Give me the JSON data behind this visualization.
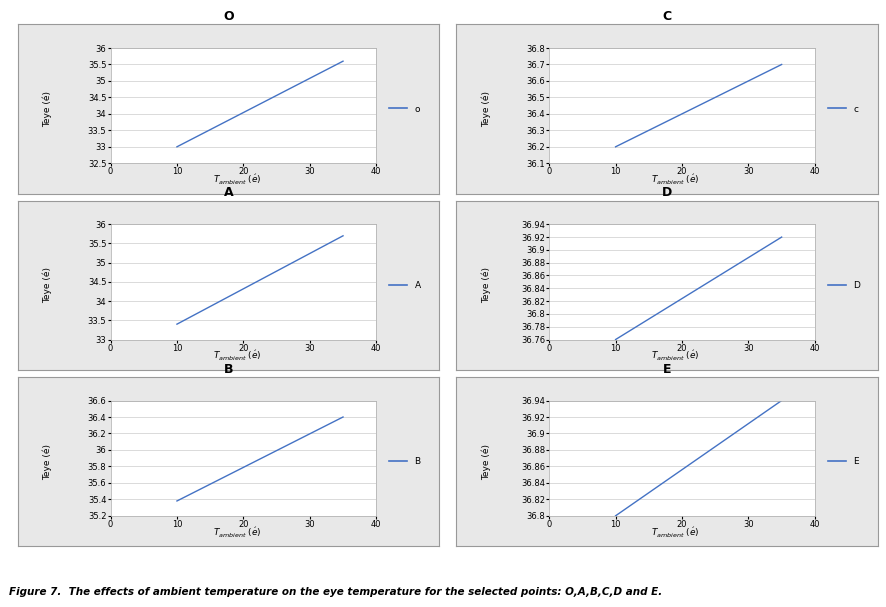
{
  "subplots": [
    {
      "title": "O",
      "label": "o",
      "x": [
        10,
        35
      ],
      "y": [
        33.0,
        35.6
      ],
      "ylim": [
        32.5,
        36
      ],
      "yticks": [
        32.5,
        33,
        33.5,
        34,
        34.5,
        35,
        35.5,
        36
      ],
      "ytick_labels": [
        "32.5",
        "33",
        "33.5",
        "34",
        "34.5",
        "35",
        "35.5",
        "36"
      ],
      "xlim": [
        0,
        40
      ],
      "xticks": [
        0,
        10,
        20,
        30,
        40
      ]
    },
    {
      "title": "C",
      "label": "c",
      "x": [
        10,
        35
      ],
      "y": [
        36.2,
        36.7
      ],
      "ylim": [
        36.1,
        36.8
      ],
      "yticks": [
        36.1,
        36.2,
        36.3,
        36.4,
        36.5,
        36.6,
        36.7,
        36.8
      ],
      "ytick_labels": [
        "36.1",
        "36.2",
        "36.3",
        "36.4",
        "36.5",
        "36.6",
        "36.7",
        "36.8"
      ],
      "xlim": [
        0,
        40
      ],
      "xticks": [
        0,
        10,
        20,
        30,
        40
      ]
    },
    {
      "title": "A",
      "label": "A",
      "x": [
        10,
        35
      ],
      "y": [
        33.4,
        35.7
      ],
      "ylim": [
        33,
        36
      ],
      "yticks": [
        33,
        33.5,
        34,
        34.5,
        35,
        35.5,
        36
      ],
      "ytick_labels": [
        "33",
        "33.5",
        "34",
        "34.5",
        "35",
        "35.5",
        "36"
      ],
      "xlim": [
        0,
        40
      ],
      "xticks": [
        0,
        10,
        20,
        30,
        40
      ]
    },
    {
      "title": "D",
      "label": "D",
      "x": [
        10,
        35
      ],
      "y": [
        36.76,
        36.92
      ],
      "ylim": [
        36.75,
        36.94
      ],
      "yticks": [
        36.76,
        36.78,
        36.8,
        36.82,
        36.84,
        36.86,
        36.88,
        36.9,
        36.92,
        36.94
      ],
      "ytick_labels": [
        "36.76",
        "36.78",
        "36.8",
        "36.82",
        "36.84",
        "36.86",
        "36.88",
        "36.9",
        "36.92",
        "36.94"
      ],
      "xlim": [
        0,
        40
      ],
      "xticks": [
        0,
        10,
        20,
        30,
        40
      ]
    },
    {
      "title": "B",
      "label": "B",
      "x": [
        10,
        35
      ],
      "y": [
        35.38,
        36.4
      ],
      "ylim": [
        35.2,
        36.6
      ],
      "yticks": [
        35.2,
        35.4,
        35.6,
        35.8,
        36,
        36.2,
        36.4,
        36.6
      ],
      "ytick_labels": [
        "35.2",
        "35.4",
        "35.6",
        "35.8",
        "36",
        "36.2",
        "36.4",
        "36.6"
      ],
      "xlim": [
        0,
        40
      ],
      "xticks": [
        0,
        10,
        20,
        30,
        40
      ]
    },
    {
      "title": "E",
      "label": "E",
      "x": [
        10,
        35
      ],
      "y": [
        36.8,
        36.94
      ],
      "ylim": [
        36.79,
        36.95
      ],
      "yticks": [
        36.8,
        36.82,
        36.84,
        36.86,
        36.88,
        36.9,
        36.92,
        36.94
      ],
      "ytick_labels": [
        "36.8",
        "36.82",
        "36.84",
        "36.86",
        "36.88",
        "36.9",
        "36.92",
        "36.94"
      ],
      "xlim": [
        0,
        40
      ],
      "xticks": [
        0,
        10,
        20,
        30,
        40
      ]
    }
  ],
  "line_color": "#4472C4",
  "ylabel": "Teye (é)",
  "figure_caption": "Figure 7.  The effects of ambient temperature on the eye temperature for the selected points: O,A,B,C,D and E.",
  "background_color": "#ffffff",
  "outer_bg": "#e8e8e8",
  "border_color": "#999999",
  "grid_color": "#cccccc",
  "title_fontsize": 9,
  "tick_fontsize": 6,
  "label_fontsize": 6.5,
  "legend_fontsize": 6.5,
  "caption_fontsize": 7.5
}
